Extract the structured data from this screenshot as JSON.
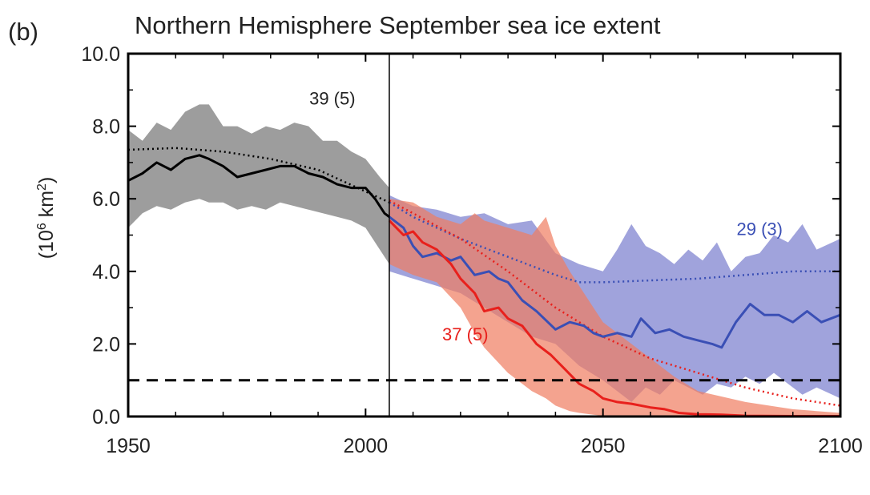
{
  "panel_label": "(b)",
  "title": "Northern Hemisphere September sea ice extent",
  "ylabel": {
    "prefix": "(10",
    "exp1": "6",
    "mid": " km",
    "exp2": "2",
    "suffix": ")"
  },
  "colors": {
    "historical": "#000000",
    "historical_band": "#8c8c8c",
    "rcp_low": "#3a4fb5",
    "rcp_low_band": "#8f93d6",
    "rcp_high": "#e8201c",
    "rcp_high_band": "#f07c60",
    "overlap_band": "#8a5670"
  },
  "chart_data": {
    "type": "line",
    "title": "Northern Hemisphere September sea ice extent",
    "xlim": [
      1950,
      2100
    ],
    "ylim": [
      0,
      10
    ],
    "x_ticks": [
      1950,
      2000,
      2050,
      2100
    ],
    "y_ticks": [
      "0.0",
      "2.0",
      "4.0",
      "6.0",
      "8.0",
      "10.0"
    ],
    "vertical_line_x": 2005,
    "threshold_dashed_y": 1.0,
    "annotations": [
      {
        "text": "39 (5)",
        "series": "historical",
        "x": 1993,
        "y": 8.6
      },
      {
        "text": "29 (3)",
        "series": "rcp_low",
        "x": 2083,
        "y": 5.0
      },
      {
        "text": "37 (5)",
        "series": "rcp_high",
        "x": 2021,
        "y": 2.1
      }
    ],
    "series": [
      {
        "key": "historical",
        "style": "solid",
        "x": [
          1950,
          1953,
          1956,
          1959,
          1962,
          1965,
          1967,
          1970,
          1973,
          1976,
          1979,
          1982,
          1985,
          1988,
          1991,
          1994,
          1997,
          2000,
          2002,
          2004,
          2005
        ],
        "values": [
          6.5,
          6.7,
          7.0,
          6.8,
          7.1,
          7.2,
          7.1,
          6.9,
          6.6,
          6.7,
          6.8,
          6.9,
          6.9,
          6.7,
          6.6,
          6.4,
          6.3,
          6.3,
          6.0,
          5.6,
          5.5
        ]
      },
      {
        "key": "historical_mean",
        "style": "dotted",
        "x": [
          1950,
          1960,
          1970,
          1980,
          1990,
          2000,
          2005
        ],
        "values": [
          7.35,
          7.4,
          7.3,
          7.1,
          6.8,
          6.2,
          5.9
        ]
      },
      {
        "key": "historical_band",
        "style": "band",
        "x": [
          1950,
          1953,
          1956,
          1959,
          1962,
          1965,
          1967,
          1970,
          1973,
          1976,
          1979,
          1982,
          1985,
          1988,
          1991,
          1994,
          1997,
          2000,
          2003,
          2005
        ],
        "upper": [
          7.9,
          7.6,
          8.1,
          7.9,
          8.4,
          8.6,
          8.6,
          8.0,
          8.0,
          7.8,
          8.0,
          7.9,
          8.1,
          8.0,
          7.6,
          7.6,
          7.3,
          7.1,
          6.6,
          6.3
        ],
        "lower": [
          5.2,
          5.6,
          5.8,
          5.7,
          5.9,
          6.0,
          5.9,
          5.9,
          5.7,
          5.8,
          5.7,
          5.9,
          5.8,
          5.7,
          5.6,
          5.5,
          5.4,
          5.2,
          4.6,
          4.2
        ]
      },
      {
        "key": "rcp_low",
        "style": "solid",
        "x": [
          2005,
          2008,
          2010,
          2012,
          2015,
          2018,
          2020,
          2023,
          2026,
          2028,
          2030,
          2033,
          2036,
          2040,
          2043,
          2046,
          2048,
          2050,
          2053,
          2056,
          2058,
          2061,
          2064,
          2067,
          2070,
          2073,
          2075,
          2078,
          2081,
          2084,
          2087,
          2090,
          2093,
          2096,
          2100
        ],
        "values": [
          5.5,
          5.2,
          4.7,
          4.4,
          4.5,
          4.3,
          4.4,
          3.9,
          4.0,
          3.8,
          3.7,
          3.2,
          2.9,
          2.4,
          2.6,
          2.5,
          2.3,
          2.2,
          2.3,
          2.2,
          2.7,
          2.3,
          2.4,
          2.2,
          2.1,
          2.0,
          1.9,
          2.6,
          3.1,
          2.8,
          2.8,
          2.6,
          2.9,
          2.6,
          2.8
        ]
      },
      {
        "key": "rcp_low_mean",
        "style": "dotted",
        "x": [
          2005,
          2010,
          2020,
          2030,
          2040,
          2045,
          2050,
          2060,
          2070,
          2080,
          2090,
          2100
        ],
        "values": [
          5.9,
          5.5,
          4.9,
          4.4,
          3.9,
          3.7,
          3.7,
          3.75,
          3.8,
          3.9,
          4.0,
          4.0
        ]
      },
      {
        "key": "rcp_low_band",
        "style": "band",
        "x": [
          2005,
          2010,
          2015,
          2020,
          2025,
          2030,
          2035,
          2040,
          2045,
          2050,
          2053,
          2056,
          2059,
          2062,
          2065,
          2068,
          2071,
          2074,
          2077,
          2080,
          2083,
          2086,
          2089,
          2092,
          2095,
          2100
        ],
        "upper": [
          6.1,
          5.8,
          5.7,
          5.5,
          5.6,
          5.3,
          5.4,
          4.5,
          4.2,
          4.0,
          4.6,
          5.3,
          4.7,
          4.5,
          4.2,
          4.6,
          4.3,
          4.8,
          4.0,
          4.4,
          4.5,
          5.0,
          4.8,
          5.3,
          4.6,
          4.9
        ],
        "lower": [
          4.0,
          3.8,
          3.6,
          3.4,
          3.0,
          2.6,
          2.2,
          2.0,
          1.4,
          1.0,
          0.7,
          0.4,
          0.8,
          0.6,
          1.0,
          0.8,
          0.6,
          0.9,
          0.8,
          1.1,
          0.9,
          1.2,
          0.9,
          0.6,
          0.8,
          0.5
        ]
      },
      {
        "key": "rcp_high",
        "style": "solid",
        "x": [
          2005,
          2008,
          2010,
          2012,
          2015,
          2018,
          2020,
          2023,
          2025,
          2028,
          2030,
          2033,
          2036,
          2039,
          2042,
          2045,
          2048,
          2050,
          2053,
          2056,
          2060,
          2063,
          2066,
          2070,
          2075,
          2080,
          2090,
          2100
        ],
        "values": [
          5.4,
          5.0,
          5.1,
          4.8,
          4.6,
          4.2,
          3.8,
          3.4,
          2.9,
          3.0,
          2.7,
          2.5,
          2.0,
          1.7,
          1.3,
          0.9,
          0.7,
          0.5,
          0.4,
          0.35,
          0.25,
          0.2,
          0.1,
          0.06,
          0.05,
          0.02,
          0.01,
          0.01
        ]
      },
      {
        "key": "rcp_high_mean",
        "style": "dotted",
        "x": [
          2005,
          2010,
          2020,
          2030,
          2040,
          2050,
          2060,
          2070,
          2080,
          2090,
          2100
        ],
        "values": [
          5.95,
          5.6,
          4.9,
          4.0,
          3.0,
          2.2,
          1.6,
          1.2,
          0.8,
          0.5,
          0.3
        ]
      },
      {
        "key": "rcp_high_band",
        "style": "band",
        "x": [
          2005,
          2010,
          2015,
          2020,
          2023,
          2025,
          2030,
          2035,
          2038,
          2040,
          2043,
          2045,
          2048,
          2050,
          2055,
          2060,
          2065,
          2070,
          2080,
          2090,
          2100
        ],
        "upper": [
          6.0,
          5.9,
          5.5,
          5.3,
          5.6,
          5.4,
          5.2,
          5.0,
          5.5,
          4.7,
          4.0,
          3.6,
          3.0,
          2.6,
          2.1,
          1.6,
          1.1,
          0.7,
          0.4,
          0.2,
          0.1
        ],
        "lower": [
          4.2,
          3.9,
          3.7,
          3.0,
          2.3,
          1.9,
          1.2,
          0.7,
          0.5,
          0.3,
          0.15,
          0.1,
          0.05,
          0.02,
          0.0,
          0.0,
          0.0,
          0.0,
          0.0,
          0.0,
          0.0
        ]
      }
    ]
  }
}
